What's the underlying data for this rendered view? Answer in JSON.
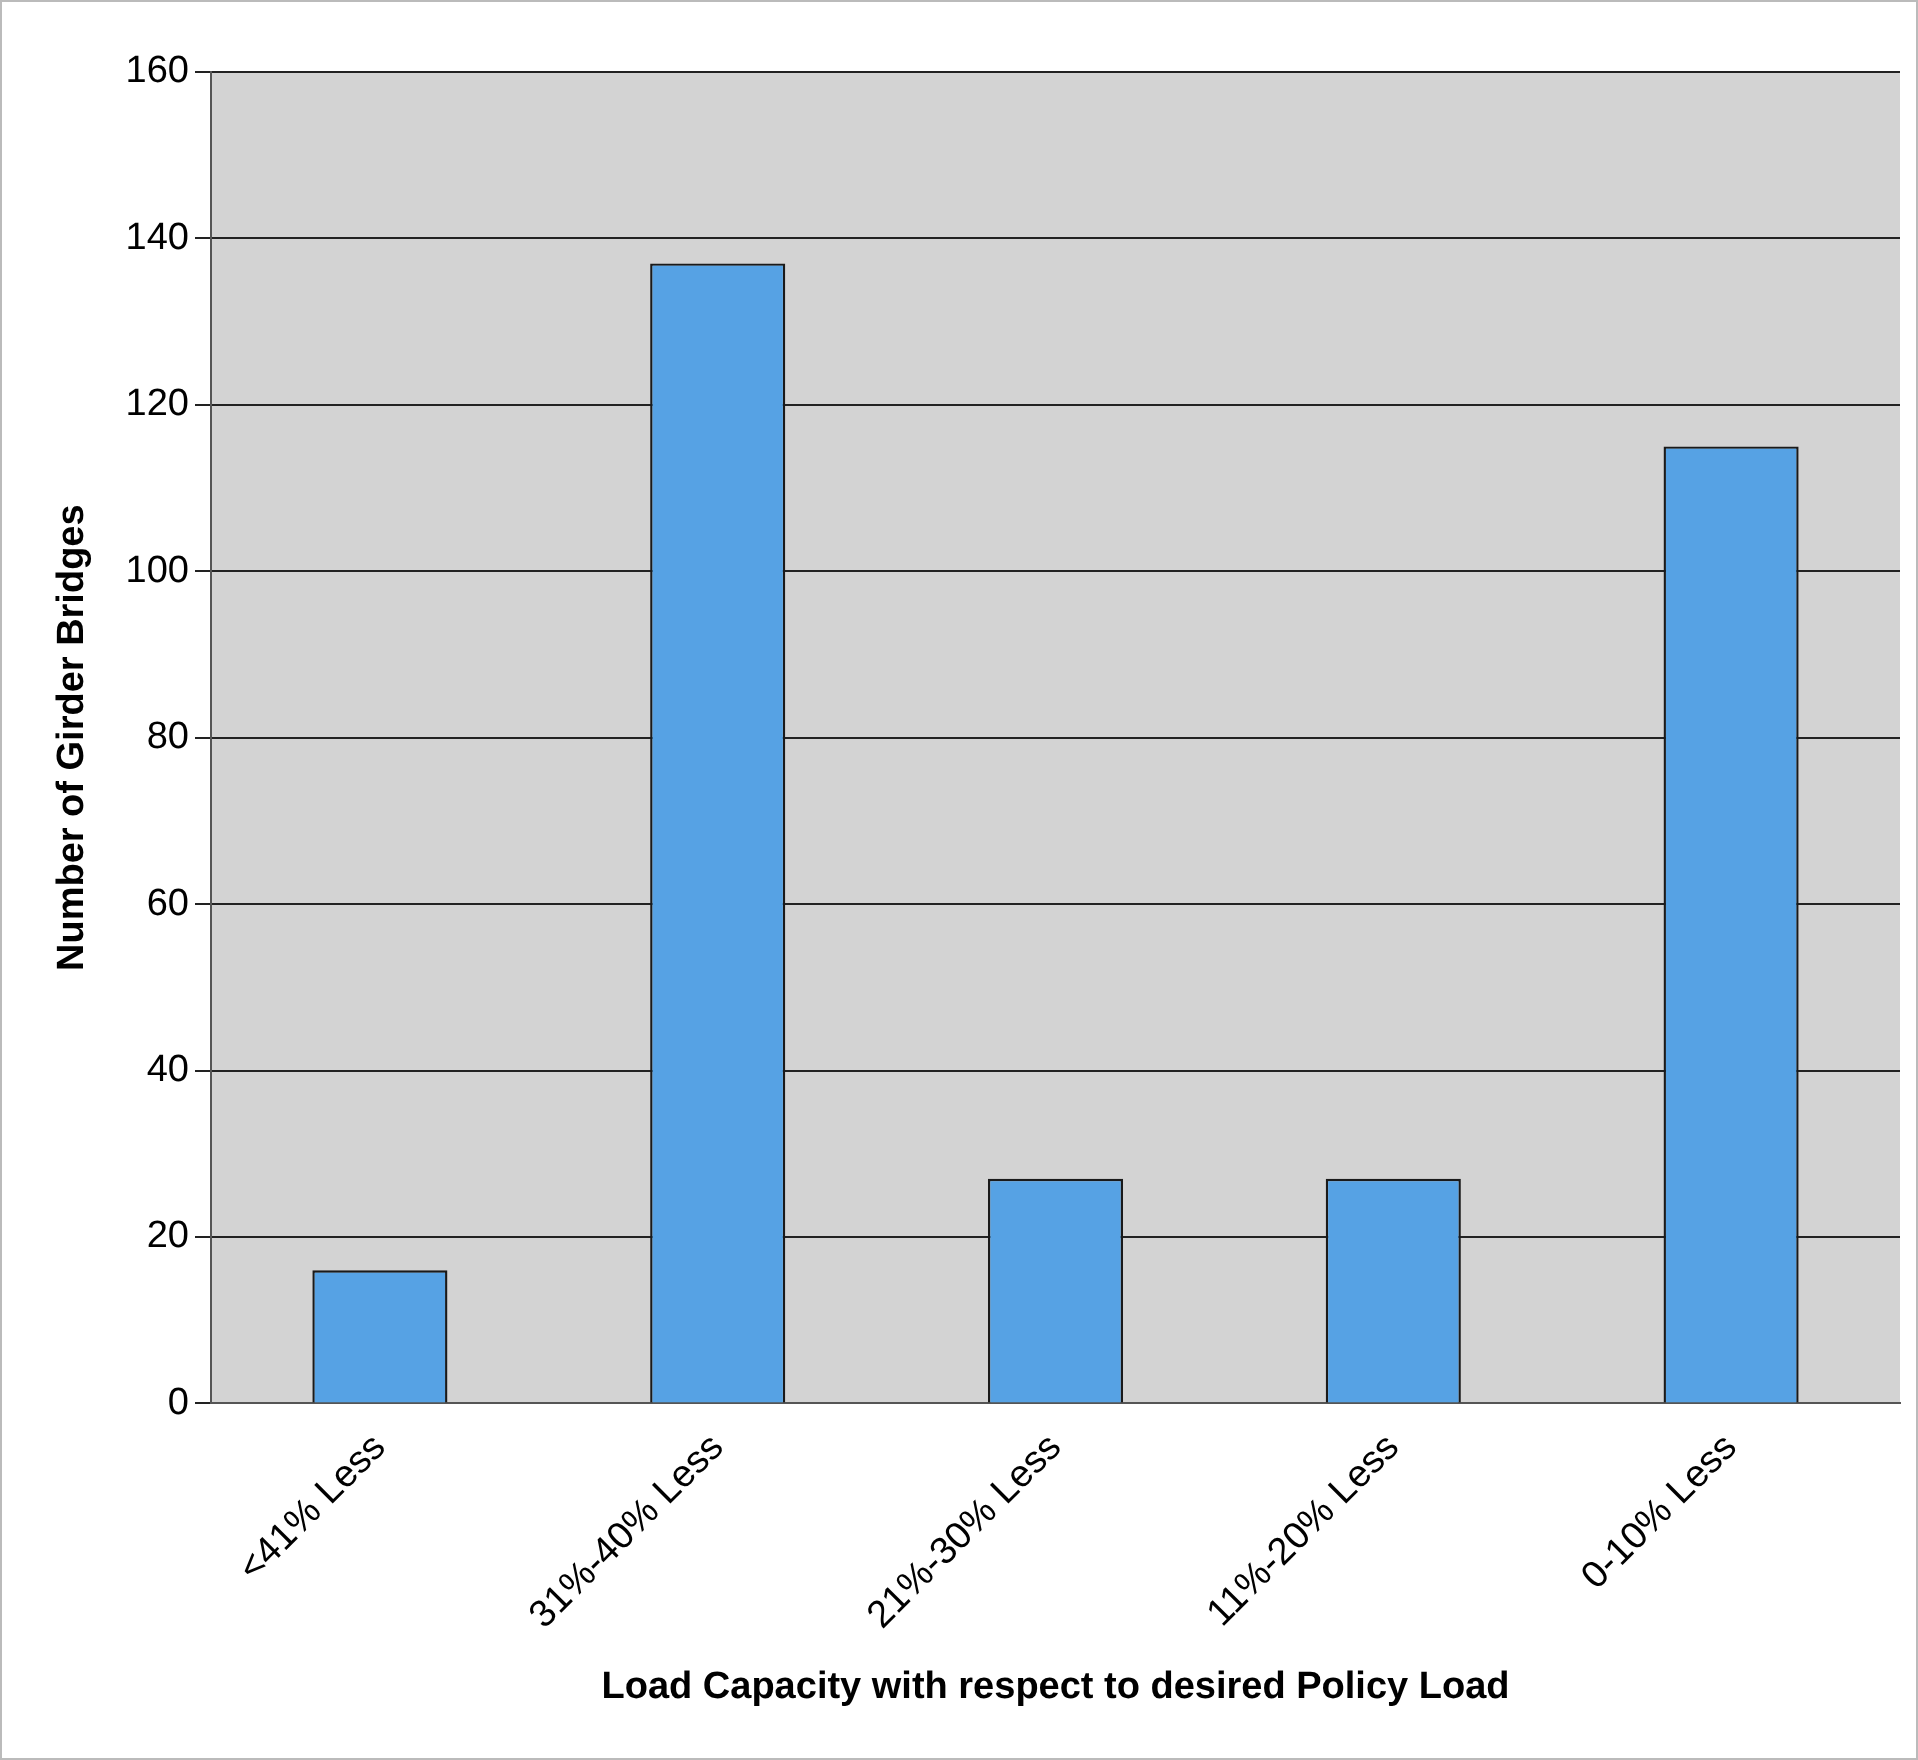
{
  "chart_data": {
    "type": "bar",
    "xlabel": "Load Capacity with respect to desired Policy Load",
    "ylabel": "Number of Girder Bridges",
    "categories": [
      "<41% Less",
      "31%-40% Less",
      "21%-30% Less",
      "11%-20% Less",
      "0-10% Less"
    ],
    "values": [
      16,
      137,
      27,
      27,
      115
    ],
    "color": "#56a2e4",
    "ylim": [
      0,
      160
    ],
    "yticks": [
      0,
      20,
      40,
      60,
      80,
      100,
      120,
      140,
      160
    ],
    "grid": "y",
    "legend": false
  }
}
